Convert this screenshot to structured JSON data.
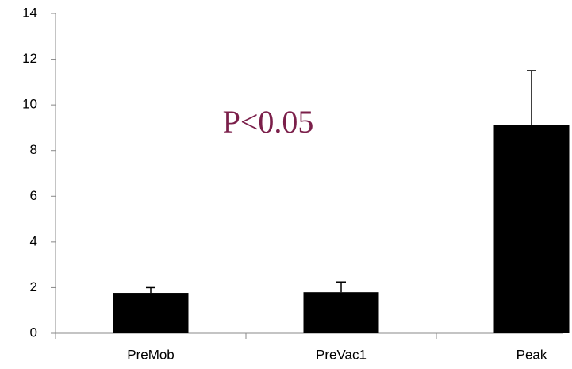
{
  "chart_data": {
    "type": "bar",
    "categories": [
      "PreMob",
      "PreVac1",
      "Peak"
    ],
    "values": [
      1.77,
      1.8,
      9.13
    ],
    "errors": [
      0.23,
      0.45,
      2.37
    ],
    "color": "#000000",
    "annotation": "P<0.05",
    "ylim": [
      0,
      14
    ],
    "yticks": [
      0,
      2,
      4,
      6,
      8,
      10,
      12,
      14
    ],
    "grid": false
  }
}
